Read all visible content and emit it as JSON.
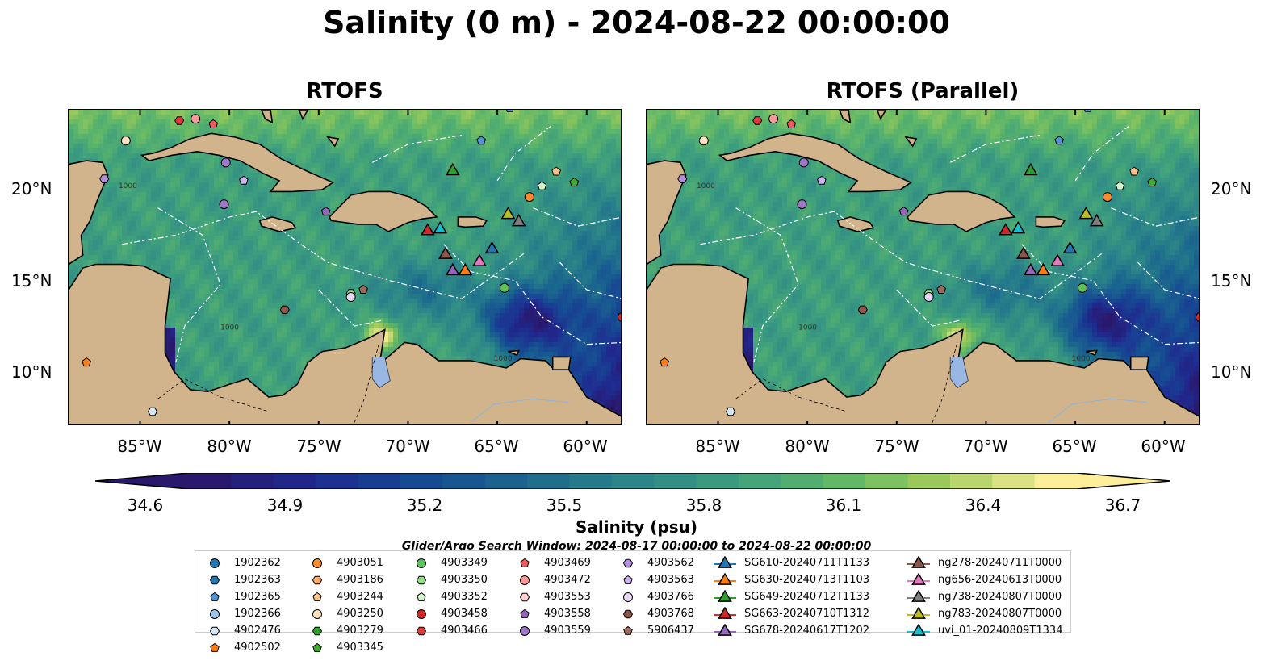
{
  "title": "Salinity (0 m) - 2024-08-22 00:00:00",
  "panels": [
    {
      "title": "RTOFS"
    },
    {
      "title": "RTOFS (Parallel)"
    }
  ],
  "lat_labels": [
    "20°N",
    "15°N",
    "10°N"
  ],
  "lon_labels": [
    "85°W",
    "80°W",
    "75°W",
    "70°W",
    "65°W",
    "60°W"
  ],
  "colorbar": {
    "label": "Salinity (psu)",
    "ticks": [
      "34.6",
      "34.9",
      "35.2",
      "35.5",
      "35.8",
      "36.1",
      "36.4",
      "36.7"
    ],
    "range": [
      34.6,
      36.7
    ],
    "colormap": "haline"
  },
  "contour_labels": [
    "1000",
    "1000",
    "1000"
  ],
  "search_window": "Glider/Argo Search Window: 2024-08-17 00:00:00 to 2024-08-22 00:00:00",
  "colors": {
    "land": "#d2b48c",
    "lake": "#98b7e2"
  },
  "legend": {
    "columns": [
      [
        {
          "label": "1902362",
          "marker": "circle",
          "color": "#1f77b4"
        },
        {
          "label": "1902363",
          "marker": "hexagon",
          "color": "#1f77b4"
        },
        {
          "label": "1902365",
          "marker": "pentagon",
          "color": "#4b96d6"
        },
        {
          "label": "1902366",
          "marker": "circle",
          "color": "#9ec6ea"
        },
        {
          "label": "4902476",
          "marker": "hexagon",
          "color": "#d6e8f7"
        },
        {
          "label": "4902502",
          "marker": "pentagon",
          "color": "#ff7f0e"
        }
      ],
      [
        {
          "label": "4903051",
          "marker": "circle",
          "color": "#ff8c2a"
        },
        {
          "label": "4903186",
          "marker": "hexagon",
          "color": "#ffab66"
        },
        {
          "label": "4903244",
          "marker": "pentagon",
          "color": "#ffc28f"
        },
        {
          "label": "4903250",
          "marker": "circle",
          "color": "#ffe2c2"
        },
        {
          "label": "4903279",
          "marker": "hexagon",
          "color": "#2ca02c"
        },
        {
          "label": "4903345",
          "marker": "pentagon",
          "color": "#3fae2f"
        }
      ],
      [
        {
          "label": "4903349",
          "marker": "circle",
          "color": "#5fc35b"
        },
        {
          "label": "4903350",
          "marker": "hexagon",
          "color": "#98df8a"
        },
        {
          "label": "4903352",
          "marker": "pentagon",
          "color": "#d4f5cc"
        },
        {
          "label": "4903458",
          "marker": "circle",
          "color": "#d62728"
        },
        {
          "label": "4903466",
          "marker": "hexagon",
          "color": "#e03b3b"
        }
      ],
      [
        {
          "label": "4903469",
          "marker": "pentagon",
          "color": "#ef5b5b"
        },
        {
          "label": "4903472",
          "marker": "circle",
          "color": "#ff9896"
        },
        {
          "label": "4903553",
          "marker": "hexagon",
          "color": "#ffd0cf"
        },
        {
          "label": "4903558",
          "marker": "pentagon",
          "color": "#9467bd"
        },
        {
          "label": "4903559",
          "marker": "circle",
          "color": "#9f77c9"
        }
      ],
      [
        {
          "label": "4903562",
          "marker": "hexagon",
          "color": "#b48fdc"
        },
        {
          "label": "4903563",
          "marker": "pentagon",
          "color": "#cfb5ef"
        },
        {
          "label": "4903766",
          "marker": "circle",
          "color": "#e7d7f7"
        },
        {
          "label": "4903768",
          "marker": "hexagon",
          "color": "#8c564b"
        },
        {
          "label": "5906437",
          "marker": "pentagon",
          "color": "#9b6b5e"
        }
      ],
      [
        {
          "label": "SG610-20240711T1133",
          "marker": "triangle-line",
          "color": "#1f77b4"
        },
        {
          "label": "SG630-20240713T1103",
          "marker": "triangle-line",
          "color": "#ff7f0e"
        },
        {
          "label": "SG649-20240712T1133",
          "marker": "triangle-line",
          "color": "#2ca02c"
        },
        {
          "label": "SG663-20240710T1312",
          "marker": "triangle-line",
          "color": "#d62728"
        },
        {
          "label": "SG678-20240617T1202",
          "marker": "triangle-line",
          "color": "#9467bd"
        }
      ],
      [
        {
          "label": "ng278-20240711T0000",
          "marker": "triangle-line",
          "color": "#8c564b"
        },
        {
          "label": "ng656-20240613T0000",
          "marker": "triangle-line",
          "color": "#e377c2"
        },
        {
          "label": "ng738-20240807T0000",
          "marker": "triangle-line",
          "color": "#7f7f7f"
        },
        {
          "label": "ng783-20240807T0000",
          "marker": "triangle-line",
          "color": "#bcbd22"
        },
        {
          "label": "uvi_01-20240809T1334",
          "marker": "triangle-line",
          "color": "#17becf"
        }
      ]
    ]
  },
  "map_markers": [
    {
      "lon": -82.8,
      "lat": 23.8,
      "marker": "hexagon",
      "color": "#e03b3b"
    },
    {
      "lon": -81.9,
      "lat": 23.9,
      "marker": "circle",
      "color": "#ff9896"
    },
    {
      "lon": -80.9,
      "lat": 23.6,
      "marker": "pentagon",
      "color": "#ef5b5b"
    },
    {
      "lon": -85.8,
      "lat": 22.7,
      "marker": "circle",
      "color": "#ffe2c2"
    },
    {
      "lon": -80.2,
      "lat": 21.5,
      "marker": "circle",
      "color": "#9f77c9"
    },
    {
      "lon": -87.0,
      "lat": 20.6,
      "marker": "hexagon",
      "color": "#b48fdc"
    },
    {
      "lon": -79.2,
      "lat": 20.5,
      "marker": "pentagon",
      "color": "#cfb5ef"
    },
    {
      "lon": -80.3,
      "lat": 19.2,
      "marker": "circle",
      "color": "#9f77c9"
    },
    {
      "lon": -74.6,
      "lat": 18.8,
      "marker": "pentagon",
      "color": "#9467bd"
    },
    {
      "lon": -64.3,
      "lat": 24.5,
      "marker": "pentagon",
      "color": "#4b96d6"
    },
    {
      "lon": -65.9,
      "lat": 22.7,
      "marker": "pentagon",
      "color": "#4b96d6"
    },
    {
      "lon": -61.7,
      "lat": 21.0,
      "marker": "pentagon",
      "color": "#ffc28f"
    },
    {
      "lon": -62.5,
      "lat": 20.2,
      "marker": "pentagon",
      "color": "#d4f5cc"
    },
    {
      "lon": -60.7,
      "lat": 20.4,
      "marker": "pentagon",
      "color": "#3fae2f"
    },
    {
      "lon": -63.2,
      "lat": 19.6,
      "marker": "circle",
      "color": "#ff8c2a"
    },
    {
      "lon": -64.6,
      "lat": 14.6,
      "marker": "circle",
      "color": "#5fc35b"
    },
    {
      "lon": -72.5,
      "lat": 14.5,
      "marker": "pentagon",
      "color": "#9b6b5e"
    },
    {
      "lon": -73.2,
      "lat": 14.3,
      "marker": "hexagon",
      "color": "#98df8a"
    },
    {
      "lon": -73.2,
      "lat": 14.1,
      "marker": "circle",
      "color": "#e7d7f7"
    },
    {
      "lon": -76.9,
      "lat": 13.4,
      "marker": "hexagon",
      "color": "#8c564b"
    },
    {
      "lon": -58.0,
      "lat": 13.0,
      "marker": "circle",
      "color": "#d62728"
    },
    {
      "lon": -88.0,
      "lat": 10.5,
      "marker": "pentagon",
      "color": "#ff7f0e"
    },
    {
      "lon": -84.3,
      "lat": 7.8,
      "marker": "hexagon",
      "color": "#d6e8f7"
    },
    {
      "lon": -67.5,
      "lat": 21.1,
      "marker": "triangle",
      "color": "#2ca02c"
    },
    {
      "lon": -64.4,
      "lat": 18.7,
      "marker": "triangle",
      "color": "#bcbd22"
    },
    {
      "lon": -63.8,
      "lat": 18.3,
      "marker": "triangle",
      "color": "#7f7f7f"
    },
    {
      "lon": -68.9,
      "lat": 17.8,
      "marker": "triangle",
      "color": "#d62728"
    },
    {
      "lon": -68.2,
      "lat": 17.9,
      "marker": "triangle",
      "color": "#17becf"
    },
    {
      "lon": -65.3,
      "lat": 16.8,
      "marker": "triangle",
      "color": "#1f77b4"
    },
    {
      "lon": -67.9,
      "lat": 16.5,
      "marker": "triangle",
      "color": "#8c564b"
    },
    {
      "lon": -66.0,
      "lat": 16.1,
      "marker": "triangle",
      "color": "#e377c2"
    },
    {
      "lon": -67.5,
      "lat": 15.6,
      "marker": "triangle",
      "color": "#9467bd"
    },
    {
      "lon": -66.8,
      "lat": 15.6,
      "marker": "triangle",
      "color": "#ff7f0e"
    }
  ]
}
